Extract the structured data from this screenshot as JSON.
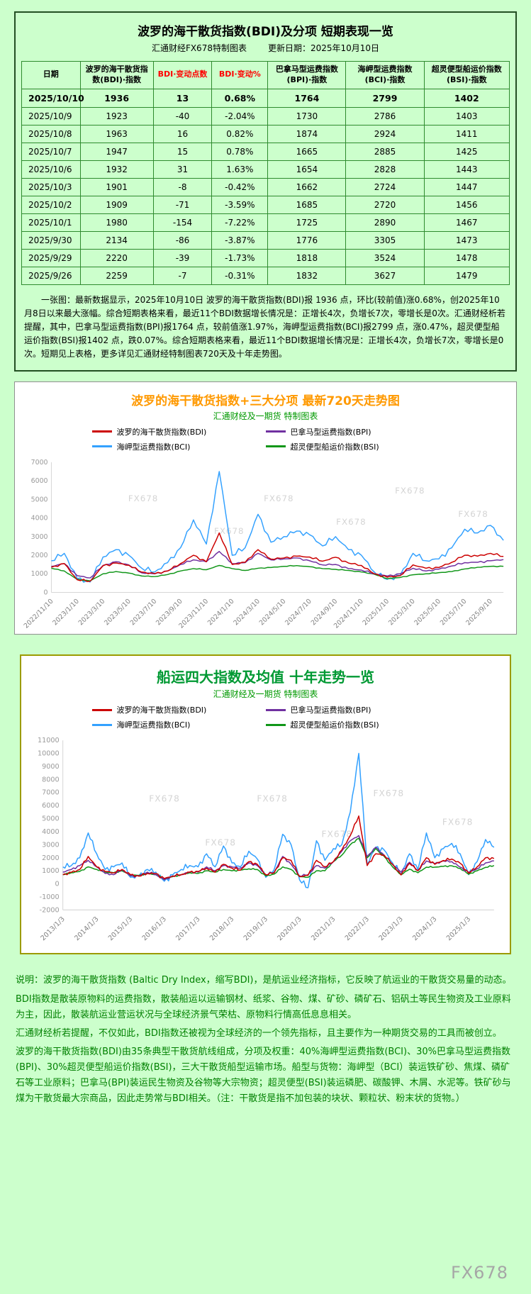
{
  "page": {
    "bg_color": "#ccffcc",
    "footer_watermark": "FX678"
  },
  "table_panel": {
    "title": "波罗的海干散货指数(BDI)及分项 短期表现一览",
    "subtitle_left": "汇通财经FX678特制图表",
    "subtitle_right": "更新日期：2025年10月10日",
    "border_color": "#234f23",
    "grid_color": "#2e8b2e",
    "columns": [
      {
        "label": "日期",
        "color": "#000000"
      },
      {
        "label": "波罗的海干散货指数(BDI)·指数",
        "color": "#000000"
      },
      {
        "label": "BDI·变动点数",
        "color": "#ff0000"
      },
      {
        "label": "BDI·变动%",
        "color": "#ff0000"
      },
      {
        "label": "巴拿马型运费指数(BPI)·指数",
        "color": "#000000"
      },
      {
        "label": "海岬型运费指数(BCI)·指数",
        "color": "#000000"
      },
      {
        "label": "超灵便型船运价指数(BSI)·指数",
        "color": "#000000"
      }
    ],
    "rows": [
      [
        "2025/10/10",
        "1936",
        "13",
        "0.68%",
        "1764",
        "2799",
        "1402"
      ],
      [
        "2025/10/9",
        "1923",
        "-40",
        "-2.04%",
        "1730",
        "2786",
        "1403"
      ],
      [
        "2025/10/8",
        "1963",
        "16",
        "0.82%",
        "1874",
        "2924",
        "1411"
      ],
      [
        "2025/10/7",
        "1947",
        "15",
        "0.78%",
        "1665",
        "2885",
        "1425"
      ],
      [
        "2025/10/6",
        "1932",
        "31",
        "1.63%",
        "1654",
        "2828",
        "1443"
      ],
      [
        "2025/10/3",
        "1901",
        "-8",
        "-0.42%",
        "1662",
        "2724",
        "1447"
      ],
      [
        "2025/10/2",
        "1909",
        "-71",
        "-3.59%",
        "1685",
        "2720",
        "1456"
      ],
      [
        "2025/10/1",
        "1980",
        "-154",
        "-7.22%",
        "1725",
        "2890",
        "1467"
      ],
      [
        "2025/9/30",
        "2134",
        "-86",
        "-3.87%",
        "1776",
        "3305",
        "1473"
      ],
      [
        "2025/9/29",
        "2220",
        "-39",
        "-1.73%",
        "1818",
        "3524",
        "1478"
      ],
      [
        "2025/9/26",
        "2259",
        "-7",
        "-0.31%",
        "1832",
        "3627",
        "1479"
      ]
    ],
    "summary": "一张图：最新数据显示，2025年10月10日 波罗的海干散货指数(BDI)报 1936 点，环比(较前值)涨0.68%，创2025年10月8日以来最大涨幅。综合短期表格来看，最近11个BDI数据增长情况是：正增长4次，负增长7次，零增长是0次。汇通财经析若提醒，其中，巴拿马型运费指数(BPI)报1764 点，较前值涨1.97%，海岬型运费指数(BCI)报2799 点，涨0.47%，超灵便型船运价指数(BSI)报1402 点，跌0.07%。综合短期表格来看，最近11个BDI数据增长情况是：正增长4次，负增长7次，零增长是0次。短期见上表格，更多详见汇通财经特制图表720天及十年走势图。"
  },
  "chart_data": [
    {
      "type": "line",
      "title": "波罗的海干散货指数+三大分项  最新720天走势图",
      "subtitle": "汇通财经及一期货 特制图表",
      "title_color": "#ff9900",
      "subtitle_color": "#009900",
      "watermark": "FX678",
      "grid": false,
      "legend_position": "top",
      "ylim": [
        0,
        7000
      ],
      "ytick_step": 1000,
      "x_tick_labels": [
        "2022/11/10",
        "2023/1/10",
        "2023/3/10",
        "2023/5/10",
        "2023/7/10",
        "2023/9/10",
        "2023/11/10",
        "2024/1/10",
        "2024/3/10",
        "2024/5/10",
        "2024/7/10",
        "2024/9/10",
        "2024/11/10",
        "2025/1/10",
        "2025/3/10",
        "2025/5/10",
        "2025/7/10",
        "2025/9/10"
      ],
      "x_tick_indices": [
        0,
        2,
        4,
        6,
        8,
        10,
        12,
        14,
        16,
        18,
        20,
        22,
        24,
        26,
        28,
        30,
        32,
        34
      ],
      "series": [
        {
          "name": "波罗的海干散货指数(BDI)",
          "color": "#cc0000",
          "values": [
            1350,
            1550,
            680,
            600,
            1430,
            1580,
            1460,
            1090,
            1010,
            1150,
            1550,
            2000,
            1650,
            3200,
            1500,
            1620,
            2300,
            1790,
            1850,
            1950,
            1900,
            1680,
            1890,
            1580,
            1450,
            1000,
            820,
            900,
            1480,
            1300,
            1340,
            1620,
            2000,
            1950,
            2100,
            1936
          ]
        },
        {
          "name": "巴拿马型运费指数(BPI)",
          "color": "#7030a0",
          "values": [
            1400,
            1550,
            900,
            780,
            1450,
            1650,
            1480,
            1050,
            1000,
            1150,
            1500,
            1750,
            1650,
            2200,
            1550,
            1600,
            2100,
            1750,
            1800,
            1850,
            1700,
            1480,
            1500,
            1280,
            1200,
            1000,
            880,
            1000,
            1300,
            1150,
            1250,
            1420,
            1600,
            1620,
            1700,
            1764
          ]
        },
        {
          "name": "海岬型运费指数(BCI)",
          "color": "#33a1ff",
          "values": [
            1700,
            2100,
            750,
            560,
            1900,
            2300,
            2000,
            1300,
            1100,
            1600,
            2400,
            3900,
            2600,
            6500,
            2000,
            2400,
            4200,
            2700,
            3000,
            3300,
            3100,
            2500,
            3000,
            2300,
            2000,
            1100,
            700,
            900,
            2100,
            1700,
            1800,
            2400,
            3400,
            3200,
            3600,
            2799
          ]
        },
        {
          "name": "超灵便型船运价指数(BSI)",
          "color": "#109618",
          "values": [
            1300,
            1150,
            700,
            620,
            1000,
            1120,
            1040,
            880,
            850,
            960,
            1150,
            1280,
            1220,
            1450,
            1280,
            1180,
            1300,
            1340,
            1400,
            1440,
            1380,
            1280,
            1240,
            1180,
            1100,
            980,
            740,
            800,
            950,
            1000,
            1060,
            1120,
            1260,
            1350,
            1400,
            1402
          ]
        }
      ]
    },
    {
      "type": "line",
      "title": "船运四大指数及均值 十年走势一览",
      "subtitle": "汇通财经及一期货 特制图表",
      "title_color": "#009933",
      "subtitle_color": "#009900",
      "watermark": "FX678",
      "grid": false,
      "legend_position": "top",
      "ylim": [
        -2000,
        11000
      ],
      "ytick_step": 1000,
      "x_tick_labels": [
        "2013/1/3",
        "2014/1/3",
        "2015/1/3",
        "2016/1/3",
        "2017/1/3",
        "2018/1/3",
        "2019/1/3",
        "2020/1/3",
        "2021/1/3",
        "2022/1/3",
        "2023/1/3",
        "2024/1/3",
        "2025/1/3"
      ],
      "x_tick_indices": [
        0,
        4,
        8,
        12,
        16,
        20,
        24,
        28,
        32,
        36,
        40,
        44,
        48
      ],
      "series": [
        {
          "name": "波罗的海干散货指数(BDI)",
          "color": "#cc0000",
          "values": [
            700,
            880,
            1100,
            2100,
            1300,
            950,
            850,
            1100,
            700,
            590,
            800,
            790,
            400,
            600,
            700,
            900,
            950,
            1200,
            900,
            1500,
            1200,
            1050,
            1700,
            1500,
            700,
            850,
            2000,
            1800,
            550,
            650,
            1800,
            1300,
            1700,
            2600,
            3700,
            5200,
            1400,
            2300,
            2200,
            1500,
            680,
            1580,
            1010,
            2000,
            1500,
            1790,
            1900,
            1580,
            820,
            1300,
            2000,
            1936
          ]
        },
        {
          "name": "巴拿马型运费指数(BPI)",
          "color": "#7030a0",
          "values": [
            900,
            1100,
            1400,
            1800,
            1300,
            800,
            700,
            1100,
            600,
            600,
            900,
            700,
            300,
            600,
            700,
            900,
            900,
            1300,
            1000,
            1400,
            1300,
            1200,
            1600,
            1400,
            700,
            900,
            2100,
            1500,
            600,
            700,
            1400,
            1200,
            1700,
            2500,
            3300,
            3700,
            2100,
            2800,
            2200,
            1500,
            900,
            1650,
            1000,
            1750,
            1550,
            1750,
            1700,
            1280,
            880,
            1150,
            1600,
            1764
          ]
        },
        {
          "name": "海岬型运费指数(BCI)",
          "color": "#33a1ff",
          "values": [
            1300,
            1400,
            2000,
            3900,
            2300,
            1100,
            1300,
            1600,
            500,
            600,
            1100,
            900,
            200,
            700,
            1100,
            1400,
            1300,
            2300,
            1300,
            2900,
            1600,
            1300,
            2500,
            1900,
            500,
            1100,
            3800,
            3000,
            300,
            -300,
            3300,
            1800,
            2700,
            3000,
            5500,
            10000,
            1500,
            2800,
            2600,
            1600,
            750,
            2300,
            1100,
            3900,
            2000,
            2700,
            3100,
            2300,
            700,
            1700,
            3400,
            2799
          ]
        },
        {
          "name": "超灵便型船运价指数(BSI)",
          "color": "#109618",
          "values": [
            700,
            850,
            950,
            1300,
            1100,
            900,
            850,
            1000,
            650,
            650,
            800,
            700,
            350,
            550,
            700,
            850,
            800,
            1000,
            900,
            1100,
            1000,
            1050,
            1150,
            1100,
            600,
            750,
            1300,
            1100,
            550,
            500,
            1000,
            1000,
            1700,
            2200,
            3000,
            3500,
            2000,
            2700,
            2100,
            1300,
            700,
            1120,
            850,
            1280,
            1280,
            1340,
            1380,
            1180,
            740,
            1000,
            1260,
            1402
          ]
        }
      ]
    }
  ],
  "notes": {
    "color": "#008000",
    "paragraphs": [
      "说明：波罗的海干散货指数 (Baltic Dry Index，缩写BDI)，是航运业经济指标，它反映了航运业的干散货交易量的动态。",
      "BDI指数是散装原物料的运费指数，散装船运以运输钢材、纸浆、谷物、煤、矿砂、磷矿石、铝矾土等民生物资及工业原料为主，因此，散装航运业营运状况与全球经济景气荣枯、原物料行情高低息息相关。",
      "汇通财经析若提醒，不仅如此，BDI指数还被视为全球经济的一个领先指标，且主要作为一种期货交易的工具而被创立。",
      "波罗的海干散货指数(BDI)由35条典型干散货航线组成，分项及权重：40%海岬型运费指数(BCI)、30%巴拿马型运费指数(BPI)、30%超灵便型船运价指数(BSI)，三大干散货船型运输市场。船型与货物：海岬型（BCI）装运铁矿砂、焦煤、磷矿石等工业原料；巴拿马(BPI)装运民生物资及谷物等大宗物资；超灵便型(BSI)装运磷肥、碳酸钾、木屑、水泥等。铁矿砂与煤为干散货最大宗商品，因此走势常与BDI相关。（注：干散货是指不加包装的块状、颗粒状、粉末状的货物。）"
    ]
  }
}
